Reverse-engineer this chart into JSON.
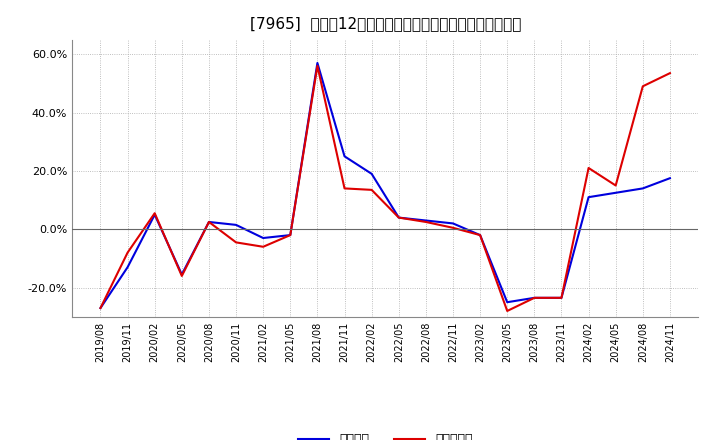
{
  "title": "[7965]  利益の12か月移動合計の対前年同期増減率の推移",
  "x_labels": [
    "2019/08",
    "2019/11",
    "2020/02",
    "2020/05",
    "2020/08",
    "2020/11",
    "2021/02",
    "2021/05",
    "2021/08",
    "2021/11",
    "2022/02",
    "2022/05",
    "2022/08",
    "2022/11",
    "2023/02",
    "2023/05",
    "2023/08",
    "2023/11",
    "2024/02",
    "2024/05",
    "2024/08",
    "2024/11"
  ],
  "ordinary_profit": [
    -0.27,
    -0.13,
    0.05,
    -0.155,
    0.025,
    0.015,
    -0.03,
    -0.02,
    0.57,
    0.25,
    0.19,
    0.04,
    0.03,
    0.02,
    -0.02,
    -0.25,
    -0.235,
    -0.235,
    0.11,
    0.125,
    0.14,
    0.175
  ],
  "net_profit": [
    -0.27,
    -0.08,
    0.055,
    -0.16,
    0.025,
    -0.045,
    -0.06,
    -0.02,
    0.56,
    0.14,
    0.135,
    0.04,
    0.025,
    0.005,
    -0.02,
    -0.28,
    -0.235,
    -0.235,
    0.21,
    0.15,
    0.49,
    0.535
  ],
  "ordinary_color": "#0000dd",
  "net_color": "#dd0000",
  "ylim": [
    -0.3,
    0.65
  ],
  "yticks": [
    -0.2,
    0.0,
    0.2,
    0.4,
    0.6
  ],
  "background_color": "#ffffff",
  "grid_color": "#aaaaaa",
  "legend_ordinary": "経常利益",
  "legend_net": "当期純利益"
}
